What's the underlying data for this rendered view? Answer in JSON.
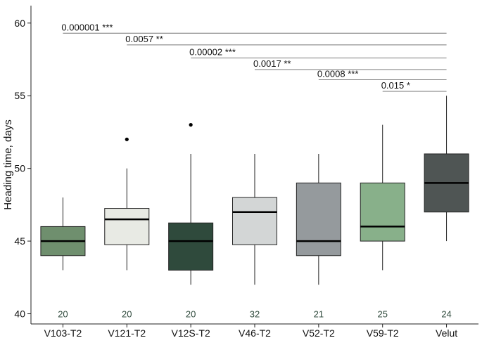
{
  "chart_data": {
    "type": "boxplot",
    "title": "",
    "xlabel": "",
    "ylabel": "Heading time, days",
    "ylim": [
      39.3,
      61.2
    ],
    "yticks": [
      40,
      45,
      50,
      55,
      60
    ],
    "categories": [
      "V103-T2",
      "V121-T2",
      "V12S-T2",
      "V46-T2",
      "V52-T2",
      "V59-T2",
      "Velut"
    ],
    "boxes": [
      {
        "name": "V103-T2",
        "q1": 44,
        "median": 45,
        "q3": 46,
        "whisker_low": 43,
        "whisker_high": 48,
        "outliers": [],
        "n": "20",
        "color": "#6f8f6e"
      },
      {
        "name": "V121-T2",
        "q1": 44.75,
        "median": 46.5,
        "q3": 47.25,
        "whisker_low": 43,
        "whisker_high": 50,
        "outliers": [
          52
        ],
        "n": "20",
        "color": "#e8eae4"
      },
      {
        "name": "V12S-T2",
        "q1": 43,
        "median": 45,
        "q3": 46.25,
        "whisker_low": 42,
        "whisker_high": 51,
        "outliers": [
          53
        ],
        "n": "20",
        "color": "#2f4a3c"
      },
      {
        "name": "V46-T2",
        "q1": 44.75,
        "median": 47,
        "q3": 48,
        "whisker_low": 42,
        "whisker_high": 51,
        "outliers": [],
        "n": "32",
        "color": "#d3d6d6"
      },
      {
        "name": "V52-T2",
        "q1": 44,
        "median": 45,
        "q3": 49,
        "whisker_low": 42,
        "whisker_high": 51,
        "outliers": [],
        "n": "21",
        "color": "#959a9d"
      },
      {
        "name": "V59-T2",
        "q1": 45,
        "median": 46,
        "q3": 49,
        "whisker_low": 43,
        "whisker_high": 53,
        "outliers": [],
        "n": "25",
        "color": "#88b08a"
      },
      {
        "name": "Velut",
        "q1": 47,
        "median": 49,
        "q3": 51,
        "whisker_low": 45,
        "whisker_high": 55,
        "outliers": [],
        "n": "24",
        "color": "#4f5554"
      }
    ],
    "count_label_y": 40,
    "count_label_color": "#2f4a3c",
    "comparisons": [
      {
        "from": "V103-T2",
        "to": "Velut",
        "y": 59.3,
        "label": "0.000001 ***"
      },
      {
        "from": "V121-T2",
        "to": "Velut",
        "y": 58.5,
        "label": "0.0057 **"
      },
      {
        "from": "V12S-T2",
        "to": "Velut",
        "y": 57.6,
        "label": "0.00002 ***"
      },
      {
        "from": "V46-T2",
        "to": "Velut",
        "y": 56.8,
        "label": "0.0017 **"
      },
      {
        "from": "V52-T2",
        "to": "Velut",
        "y": 56.1,
        "label": "0.0008 ***"
      },
      {
        "from": "V59-T2",
        "to": "Velut",
        "y": 55.3,
        "label": "0.015 *"
      }
    ]
  }
}
